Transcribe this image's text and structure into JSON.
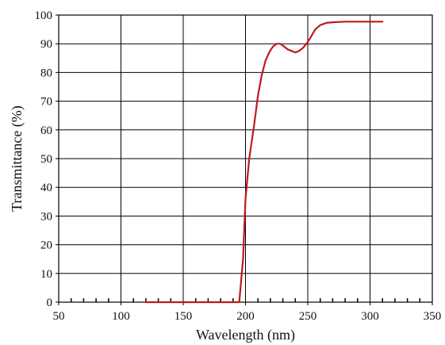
{
  "chart_data": {
    "type": "line",
    "xlabel": "Wavelength (nm)",
    "ylabel": "Transmittance (%)",
    "xlim": [
      50,
      350
    ],
    "ylim": [
      0,
      100
    ],
    "xticks": [
      50,
      100,
      150,
      200,
      250,
      300,
      350
    ],
    "yticks": [
      0,
      10,
      20,
      30,
      40,
      50,
      60,
      70,
      80,
      90,
      100
    ],
    "x_tick_labels": [
      "50",
      "100",
      "150",
      "200",
      "250",
      "300",
      "350"
    ],
    "y_tick_labels": [
      "0",
      "10",
      "20",
      "30",
      "40",
      "50",
      "60",
      "70",
      "80",
      "90",
      "100"
    ],
    "minor_xticks": [
      60,
      70,
      80,
      90,
      110,
      120,
      130,
      140,
      160,
      170,
      180,
      190,
      210,
      220,
      230,
      240,
      260,
      270,
      280,
      290,
      310,
      320,
      330,
      340
    ],
    "grid": true,
    "series": [
      {
        "color": "#c0181c",
        "x": [
          120,
          195,
          198,
          200,
          203,
          207,
          210,
          213,
          216,
          219,
          222,
          225,
          228,
          231,
          234,
          237,
          240,
          243,
          246,
          249,
          252,
          256,
          260,
          265,
          270,
          275,
          280,
          290,
          300,
          310
        ],
        "y": [
          0,
          0,
          15,
          36,
          50,
          62,
          72,
          79,
          84,
          87,
          89,
          90,
          90,
          89,
          88,
          87.5,
          87,
          87.5,
          88.5,
          90,
          92,
          95,
          96.5,
          97.3,
          97.5,
          97.6,
          97.7,
          97.7,
          97.7,
          97.7
        ]
      }
    ]
  }
}
